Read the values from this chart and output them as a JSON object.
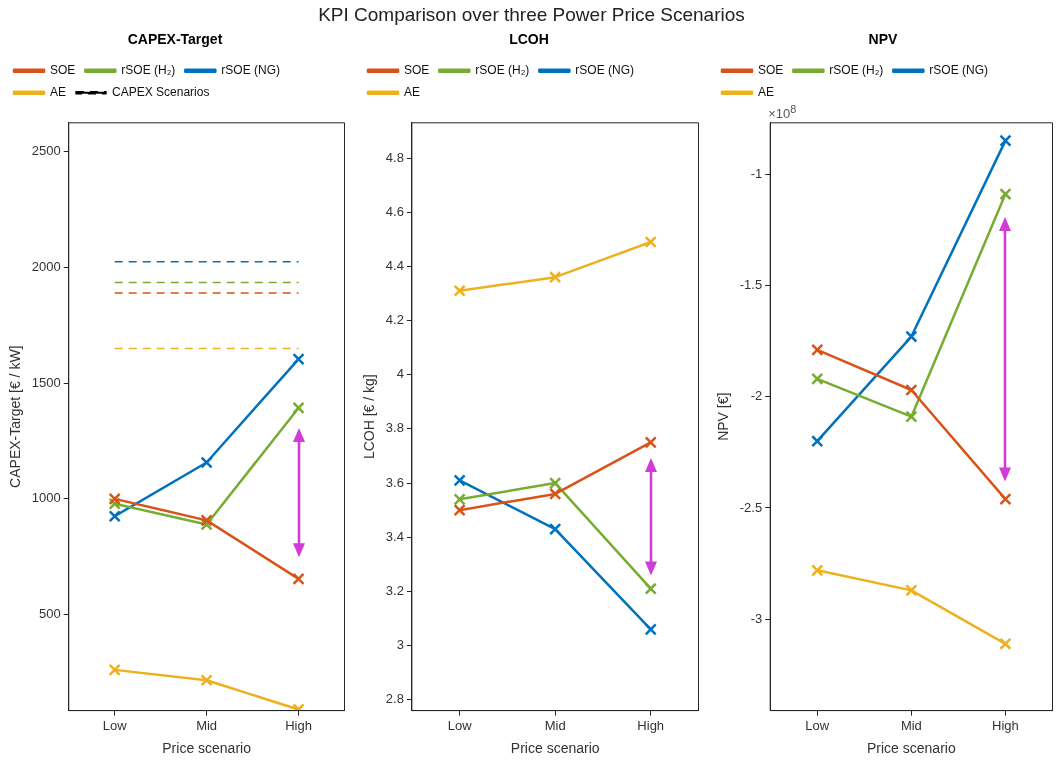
{
  "chart_data": [
    {
      "type": "line",
      "title": "CAPEX-Target",
      "xlabel": "Price scenario",
      "ylabel": "CAPEX-Target [€ / kW]",
      "categories": [
        "Low",
        "Mid",
        "High"
      ],
      "ylim": [
        85,
        2625
      ],
      "yticks": [
        500,
        1000,
        1500,
        2000,
        2500
      ],
      "grid": false,
      "legend": "top left",
      "marker": "cross",
      "annotations": [
        "KPI Comparison over three Power Price Scenarios"
      ],
      "series": [
        {
          "name": "SOE",
          "color": "#d95319",
          "values": [
            1000,
            907,
            654
          ]
        },
        {
          "name": "rSOE (H₂)",
          "color": "#77ac30",
          "values": [
            979,
            889,
            1393
          ]
        },
        {
          "name": "rSOE (NG)",
          "color": "#0072bd",
          "values": [
            925,
            1157,
            1604
          ]
        },
        {
          "name": "AE",
          "color": "#edb120",
          "values": [
            261,
            216,
            90
          ]
        },
        {
          "name": "CAPEX Scenarios",
          "color": "#000000",
          "values": [
            null,
            null,
            null
          ],
          "line_style": "dashed",
          "marker": "none"
        },
        {
          "color": "#d95319",
          "values": [
            1890,
            1890,
            1890
          ],
          "line_style": "dashed",
          "marker": "none"
        },
        {
          "color": "#77ac30",
          "values": [
            1935,
            1935,
            1935
          ],
          "line_style": "dashed",
          "marker": "none"
        },
        {
          "color": "#0072bd",
          "values": [
            2025,
            2025,
            2025
          ],
          "line_style": "dashed",
          "marker": "none"
        },
        {
          "color": "#edb120",
          "values": [
            1650,
            1650,
            1650
          ],
          "line_style": "dashed",
          "marker": "none"
        }
      ]
    },
    {
      "type": "line",
      "title": "LCOH",
      "xlabel": "Price scenario",
      "ylabel": "LCOH [€ / kg]",
      "categories": [
        "Low",
        "Mid",
        "High"
      ],
      "ylim": [
        2.76,
        4.93
      ],
      "yticks": [
        2.8,
        3,
        3.2,
        3.4,
        3.6,
        3.8,
        4,
        4.2,
        4.4,
        4.6,
        4.8
      ],
      "grid": false,
      "legend": "top left",
      "marker": "cross",
      "series": [
        {
          "name": "SOE",
          "color": "#d95319",
          "values": [
            3.5,
            3.56,
            3.75
          ]
        },
        {
          "name": "rSOE (H₂)",
          "color": "#77ac30",
          "values": [
            3.54,
            3.6,
            3.21
          ]
        },
        {
          "name": "rSOE (NG)",
          "color": "#0072bd",
          "values": [
            3.61,
            3.43,
            3.06
          ]
        },
        {
          "name": "AE",
          "color": "#edb120",
          "values": [
            4.31,
            4.36,
            4.49
          ]
        }
      ]
    },
    {
      "type": "line",
      "title": "NPV",
      "xlabel": "Price scenario",
      "ylabel": "NPV [€]",
      "categories": [
        "Low",
        "Mid",
        "High"
      ],
      "ylim": [
        -3.41,
        -0.77
      ],
      "yticks": [
        -3,
        -2.5,
        -2,
        -1.5,
        -1
      ],
      "grid": false,
      "legend": "top left",
      "marker": "cross",
      "annotations": [
        "×10$^{8}$"
      ],
      "series": [
        {
          "name": "SOE",
          "color": "#d95319",
          "values": [
            -1.79,
            -1.97,
            -2.46
          ]
        },
        {
          "name": "rSOE (H₂)",
          "color": "#77ac30",
          "values": [
            -1.92,
            -2.09,
            -1.09
          ]
        },
        {
          "name": "rSOE (NG)",
          "color": "#0072bd",
          "values": [
            -2.2,
            -1.73,
            -0.85
          ]
        },
        {
          "name": "AE",
          "color": "#edb120",
          "values": [
            -2.78,
            -2.87,
            -3.11
          ]
        }
      ]
    }
  ]
}
